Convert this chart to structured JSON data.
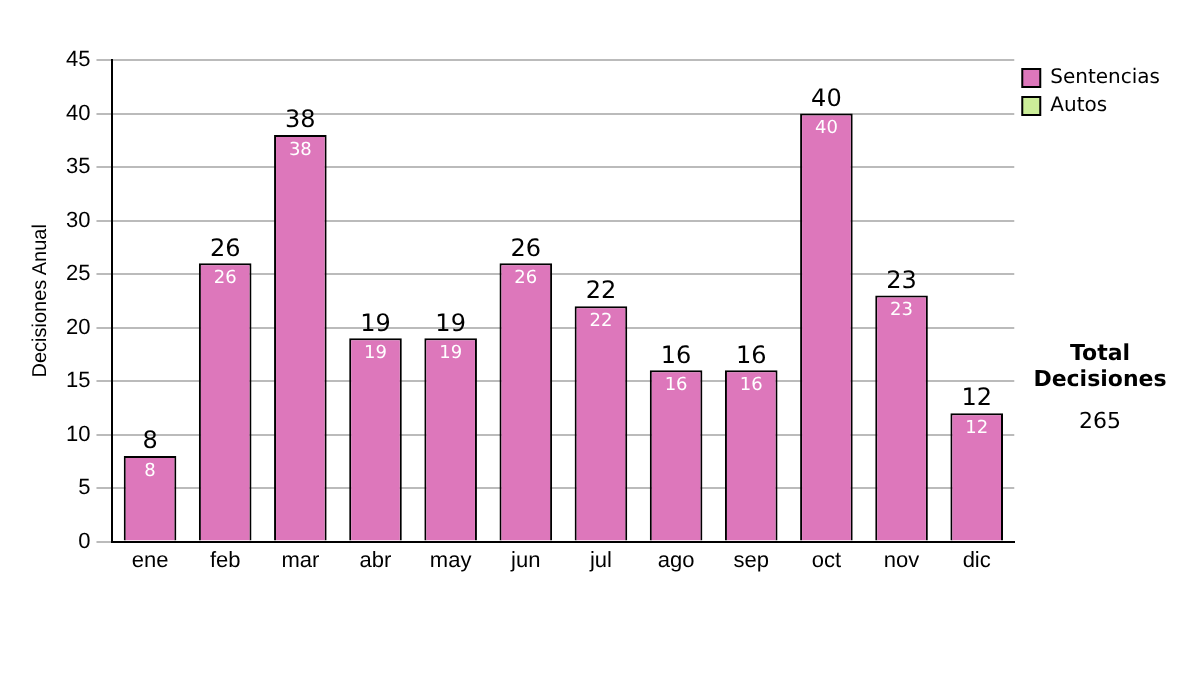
{
  "chart_data": {
    "type": "bar",
    "ylabel": "Decisiones Anual",
    "categories": [
      "ene",
      "feb",
      "mar",
      "abr",
      "may",
      "jun",
      "jul",
      "ago",
      "sep",
      "oct",
      "nov",
      "dic"
    ],
    "series": [
      {
        "name": "Sentencias",
        "color": "#dd77bb",
        "values": [
          8,
          26,
          38,
          19,
          19,
          26,
          22,
          16,
          16,
          40,
          23,
          12
        ]
      },
      {
        "name": "Autos",
        "color": "#ccee99",
        "values": [
          null,
          null,
          null,
          null,
          null,
          null,
          null,
          null,
          null,
          null,
          null,
          null
        ]
      }
    ],
    "stacked": true,
    "ylim": [
      0,
      45
    ],
    "yticks": [
      0,
      5,
      10,
      15,
      20,
      25,
      30,
      35,
      40,
      45
    ],
    "grid": "y",
    "legend": "right",
    "data_labels": true,
    "totals": [
      "8",
      "26",
      "38",
      "19",
      "19",
      "26",
      "22",
      "16",
      "16",
      "40",
      "23",
      "12"
    ],
    "annotations": [
      "Total Decisiones",
      "265"
    ]
  }
}
